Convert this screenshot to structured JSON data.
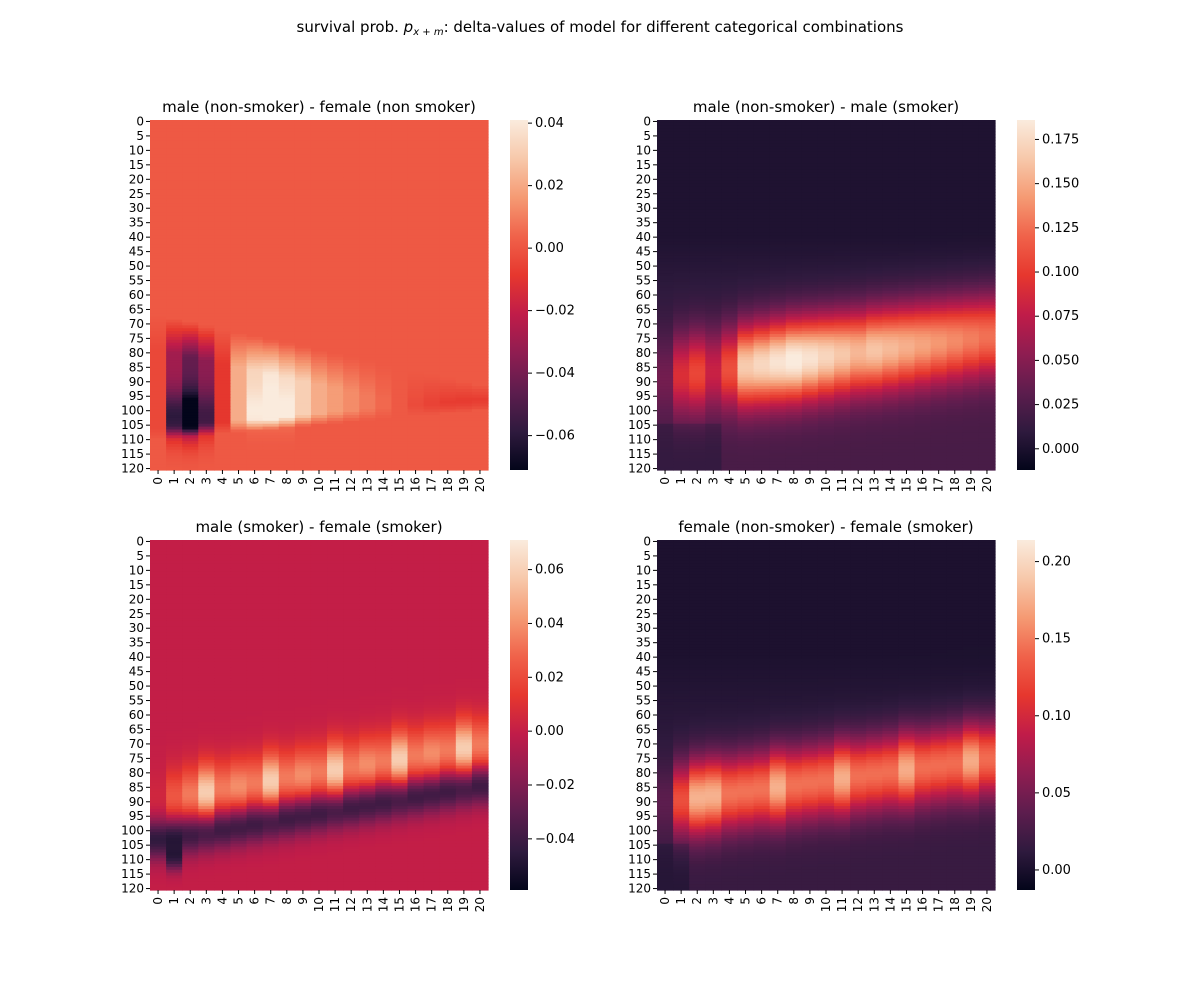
{
  "suptitle": {
    "prefix": "survival prob. ",
    "math_base": "p",
    "math_sub": "x + m",
    "suffix": ": delta-values of model for different categorical combinations"
  },
  "colormap": "rocket",
  "colormap_stops": [
    "#03051a",
    "#2f1a3e",
    "#5d1d4e",
    "#8f1d51",
    "#c01c49",
    "#e6372e",
    "#f0624a",
    "#f59a73",
    "#f7c8aa",
    "#faebdd"
  ],
  "chart_data": [
    {
      "type": "heatmap",
      "title": "male (non-smoker) - female (non smoker)",
      "x_tick_labels": [
        "0",
        "1",
        "2",
        "3",
        "4",
        "5",
        "6",
        "7",
        "8",
        "9",
        "10",
        "11",
        "12",
        "13",
        "14",
        "15",
        "16",
        "17",
        "18",
        "19",
        "20"
      ],
      "y_tick_labels": [
        "0",
        "5",
        "10",
        "15",
        "20",
        "25",
        "30",
        "35",
        "40",
        "45",
        "50",
        "55",
        "60",
        "65",
        "70",
        "75",
        "80",
        "85",
        "90",
        "95",
        "100",
        "105",
        "110",
        "115",
        "120"
      ],
      "rows": 121,
      "cols": 21,
      "colorbar_range": [
        -0.071,
        0.041
      ],
      "colorbar_ticks": [
        0.04,
        0.02,
        0.0,
        -0.02,
        -0.04,
        -0.06
      ],
      "colorbar_tick_labels": [
        "0.04",
        "0.02",
        "0.00",
        "−0.02",
        "−0.04",
        "−0.06"
      ],
      "background_value": 0.001
    },
    {
      "type": "heatmap",
      "title": "male (non-smoker) - male (smoker)",
      "x_tick_labels": [
        "0",
        "1",
        "2",
        "3",
        "4",
        "5",
        "6",
        "7",
        "8",
        "9",
        "10",
        "11",
        "12",
        "13",
        "14",
        "15",
        "16",
        "17",
        "18",
        "19",
        "20"
      ],
      "y_tick_labels": [
        "0",
        "5",
        "10",
        "15",
        "20",
        "25",
        "30",
        "35",
        "40",
        "45",
        "50",
        "55",
        "60",
        "65",
        "70",
        "75",
        "80",
        "85",
        "90",
        "95",
        "100",
        "105",
        "110",
        "115",
        "120"
      ],
      "rows": 121,
      "cols": 21,
      "colorbar_range": [
        -0.012,
        0.186
      ],
      "colorbar_ticks": [
        0.175,
        0.15,
        0.125,
        0.1,
        0.075,
        0.05,
        0.025,
        0.0
      ],
      "colorbar_tick_labels": [
        "0.175",
        "0.150",
        "0.125",
        "0.100",
        "0.075",
        "0.050",
        "0.025",
        "0.000"
      ],
      "background_value": 0.002
    },
    {
      "type": "heatmap",
      "title": "male (smoker) - female (smoker)",
      "x_tick_labels": [
        "0",
        "1",
        "2",
        "3",
        "4",
        "5",
        "6",
        "7",
        "8",
        "9",
        "10",
        "11",
        "12",
        "13",
        "14",
        "15",
        "16",
        "17",
        "18",
        "19",
        "20"
      ],
      "y_tick_labels": [
        "0",
        "5",
        "10",
        "15",
        "20",
        "25",
        "30",
        "35",
        "40",
        "45",
        "50",
        "55",
        "60",
        "65",
        "70",
        "75",
        "80",
        "85",
        "90",
        "95",
        "100",
        "105",
        "110",
        "115",
        "120"
      ],
      "rows": 121,
      "cols": 21,
      "colorbar_range": [
        -0.059,
        0.071
      ],
      "colorbar_ticks": [
        0.06,
        0.04,
        0.02,
        0.0,
        -0.02,
        -0.04
      ],
      "colorbar_tick_labels": [
        "0.06",
        "0.04",
        "0.02",
        "0.00",
        "−0.02",
        "−0.04"
      ],
      "background_value": 0.0
    },
    {
      "type": "heatmap",
      "title": "female (non-smoker) - female (smoker)",
      "x_tick_labels": [
        "0",
        "1",
        "2",
        "3",
        "4",
        "5",
        "6",
        "7",
        "8",
        "9",
        "10",
        "11",
        "12",
        "13",
        "14",
        "15",
        "16",
        "17",
        "18",
        "19",
        "20"
      ],
      "y_tick_labels": [
        "0",
        "5",
        "10",
        "15",
        "20",
        "25",
        "30",
        "35",
        "40",
        "45",
        "50",
        "55",
        "60",
        "65",
        "70",
        "75",
        "80",
        "85",
        "90",
        "95",
        "100",
        "105",
        "110",
        "115",
        "120"
      ],
      "rows": 121,
      "cols": 21,
      "colorbar_range": [
        -0.013,
        0.214
      ],
      "colorbar_ticks": [
        0.2,
        0.15,
        0.1,
        0.05,
        0.0
      ],
      "colorbar_tick_labels": [
        "0.20",
        "0.15",
        "0.10",
        "0.05",
        "0.00"
      ],
      "background_value": 0.002
    }
  ]
}
